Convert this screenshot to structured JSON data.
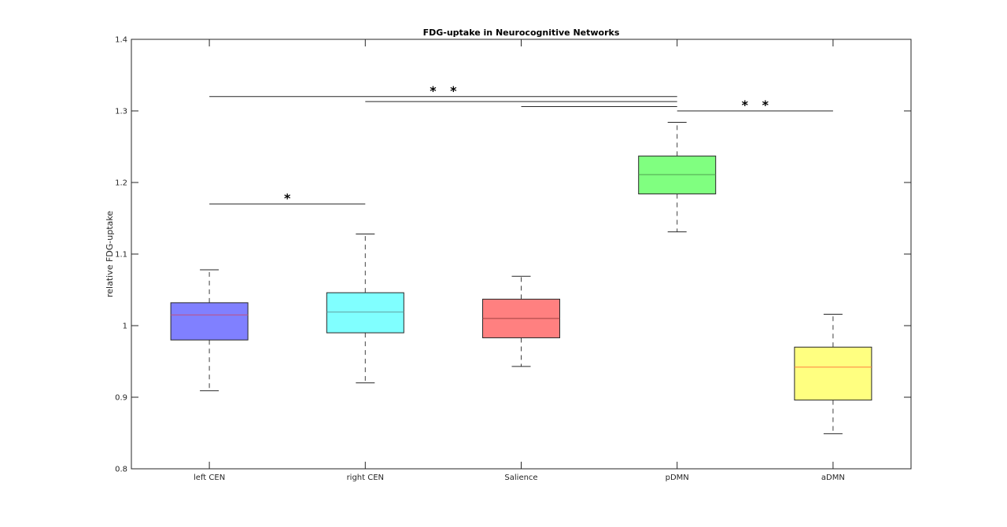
{
  "chart_data": {
    "type": "box",
    "title": "FDG-uptake in Neurocognitive Networks",
    "xlabel": "",
    "ylabel": "relative FDG-uptake",
    "ylim": [
      0.8,
      1.4
    ],
    "yticks": [
      0.8,
      0.9,
      1,
      1.1,
      1.2,
      1.3,
      1.4
    ],
    "ytick_labels": [
      "0.8",
      "0.9",
      "1",
      "1.1",
      "1.2",
      "1.3",
      "1.4"
    ],
    "grid": false,
    "categories": [
      "left CEN",
      "right CEN",
      "Salience",
      "pDMN",
      "aDMN"
    ],
    "boxes": [
      {
        "whisker_low": 0.909,
        "q1": 0.98,
        "median": 1.015,
        "q3": 1.032,
        "whisker_high": 1.078,
        "fill": "#8080ff",
        "median_color": "#c05080"
      },
      {
        "whisker_low": 0.92,
        "q1": 0.99,
        "median": 1.019,
        "q3": 1.046,
        "whisker_high": 1.128,
        "fill": "#80ffff",
        "median_color": "#60a0a0"
      },
      {
        "whisker_low": 0.943,
        "q1": 0.983,
        "median": 1.01,
        "q3": 1.037,
        "whisker_high": 1.069,
        "fill": "#ff8080",
        "median_color": "#a04040"
      },
      {
        "whisker_low": 1.131,
        "q1": 1.184,
        "median": 1.211,
        "q3": 1.237,
        "whisker_high": 1.284,
        "fill": "#80ff80",
        "median_color": "#50a050"
      },
      {
        "whisker_low": 0.849,
        "q1": 0.896,
        "median": 0.942,
        "q3": 0.97,
        "whisker_high": 1.016,
        "fill": "#ffff80",
        "median_color": "#ff8040"
      }
    ],
    "significance": [
      {
        "from": 0,
        "to": 3,
        "y": 1.32
      },
      {
        "from": 1,
        "to": 3,
        "y": 1.313
      },
      {
        "from": 2,
        "to": 3,
        "y": 1.306
      },
      {
        "from": 3,
        "to": 4,
        "y": 1.3
      },
      {
        "from": 0,
        "to": 1,
        "y": 1.17
      }
    ],
    "sig_labels": [
      {
        "text": "* *",
        "x_between": [
          0,
          3
        ],
        "y": 1.333
      },
      {
        "text": "* *",
        "x_between": [
          3,
          4
        ],
        "y": 1.313
      },
      {
        "text": "*",
        "x_between": [
          0,
          1
        ],
        "y": 1.183
      }
    ]
  }
}
